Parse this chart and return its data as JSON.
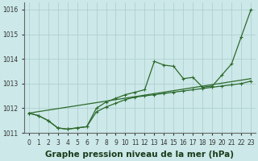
{
  "xlabel": "Graphe pression niveau de la mer (hPa)",
  "x": [
    0,
    1,
    2,
    3,
    4,
    5,
    6,
    7,
    8,
    9,
    10,
    11,
    12,
    13,
    14,
    15,
    16,
    17,
    18,
    19,
    20,
    21,
    22,
    23
  ],
  "line1": [
    1011.8,
    1011.7,
    1011.5,
    1011.2,
    1011.15,
    1011.2,
    1011.25,
    1012.0,
    1012.25,
    1012.4,
    1012.55,
    1012.65,
    1012.75,
    1013.9,
    1013.75,
    1013.7,
    1013.2,
    1013.25,
    1012.85,
    1012.9,
    1013.35,
    1013.8,
    1014.9,
    1016.0
  ],
  "line2_x": [
    0,
    23
  ],
  "line2_y": [
    1011.8,
    1013.2
  ],
  "line3": [
    1011.8,
    1011.7,
    1011.5,
    1011.2,
    1011.15,
    1011.2,
    1011.25,
    1011.85,
    1012.05,
    1012.2,
    1012.35,
    1012.45,
    1012.5,
    1012.55,
    1012.6,
    1012.65,
    1012.7,
    1012.75,
    1012.8,
    1012.85,
    1012.9,
    1012.95,
    1013.0,
    1013.1
  ],
  "line_color": "#2d6a2d",
  "bg_color": "#cce8e8",
  "grid_color": "#aacccc",
  "ylim": [
    1011.0,
    1016.3
  ],
  "yticks": [
    1011,
    1012,
    1013,
    1014,
    1015,
    1016
  ],
  "xticks": [
    0,
    1,
    2,
    3,
    4,
    5,
    6,
    7,
    8,
    9,
    10,
    11,
    12,
    13,
    14,
    15,
    16,
    17,
    18,
    19,
    20,
    21,
    22,
    23
  ],
  "marker": "+",
  "markersize": 3,
  "linewidth": 0.9,
  "xlabel_fontsize": 7.5,
  "tick_fontsize": 5.5
}
